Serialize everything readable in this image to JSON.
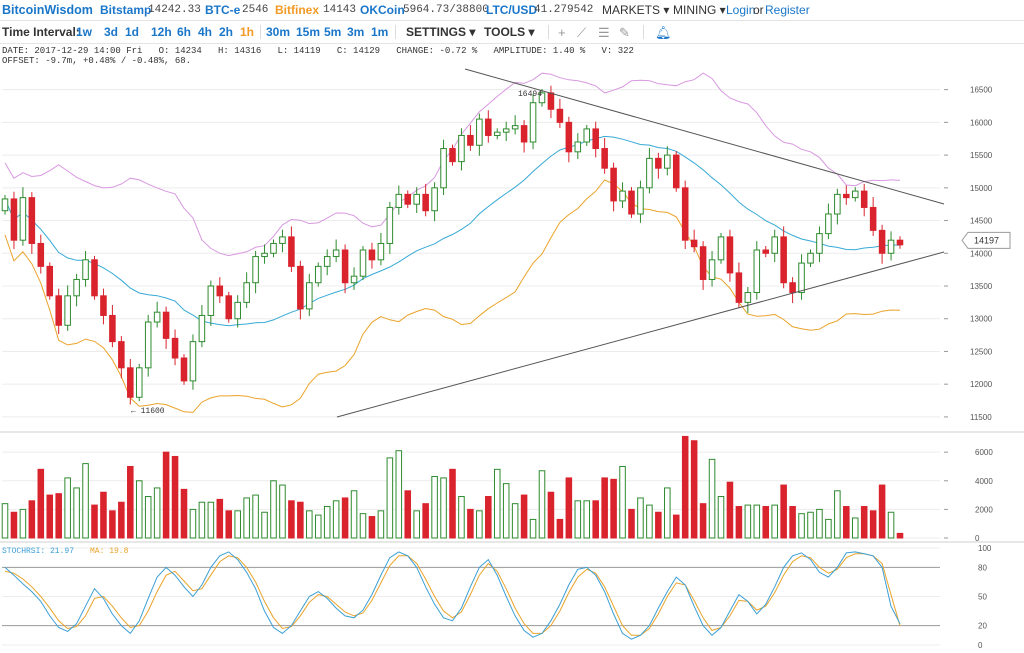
{
  "brand": "BitcoinWisdom",
  "markets": [
    {
      "name": "Bitstamp",
      "price": "14242.33",
      "color": "#1a76c9"
    },
    {
      "name": "BTC-e",
      "price": "2546",
      "color": "#1a76c9"
    },
    {
      "name": "Bitfinex",
      "price": "14143",
      "color": "#f39a25"
    },
    {
      "name": "OKCoin",
      "price": "5964.73/38800",
      "color": "#1a76c9"
    },
    {
      "name": "LTC/USD",
      "price": "41.279542",
      "color": "#1a76c9"
    }
  ],
  "nav": {
    "markets": "MARKETS ▾",
    "mining": "MINING ▾",
    "login": "Login",
    "or": "or",
    "register": "Register"
  },
  "toolbar": {
    "label": "Time Interval:",
    "intervals": [
      "1w",
      "3d",
      "1d",
      "12h",
      "6h",
      "4h",
      "2h",
      "1h",
      "30m",
      "15m",
      "5m",
      "3m",
      "1m"
    ],
    "active": "1h",
    "settings": "SETTINGS ▾",
    "tools": "TOOLS ▾",
    "tool_icons": [
      "crosshair-icon",
      "line-tool-icon",
      "fib-tool-icon",
      "brush-tool-icon",
      "alert-bell-icon"
    ]
  },
  "info": {
    "line1": "DATE: 2017-12-29 14:00 Fri   O: 14234   H: 14316   L: 14119   C: 14129   CHANGE: -0.72 %   AMPLITUDE: 1.40 %   V: 322",
    "line2": "OFFSET: -9.7m, +0.48% / -0.48%, 68."
  },
  "colors": {
    "up": "#2e8b2e",
    "down": "#d9232d",
    "mid": "#37a9d6",
    "upper": "#d899e0",
    "lower": "#eaa32a",
    "grid": "#ececec",
    "trend": "#555555"
  },
  "chart_data": {
    "type": "candlestick",
    "price_axis": {
      "ticks": [
        16500,
        16000,
        15500,
        15000,
        14500,
        14000,
        13500,
        13000,
        12500,
        12000,
        11500
      ],
      "range": [
        11300,
        16800
      ]
    },
    "current_price": "14197",
    "annotations": [
      {
        "text": "16494",
        "value": 16494
      },
      {
        "text": "← 11600",
        "value": 11600
      }
    ],
    "closes": [
      14830,
      14200,
      14850,
      14150,
      13800,
      13350,
      12900,
      13350,
      13600,
      13900,
      13350,
      13050,
      12650,
      12250,
      11800,
      12250,
      12950,
      13100,
      12700,
      12400,
      12050,
      12650,
      13050,
      13500,
      13350,
      13000,
      13250,
      13550,
      13950,
      14000,
      14150,
      14250,
      13800,
      13150,
      13550,
      13800,
      13950,
      14050,
      13550,
      13650,
      14050,
      13900,
      14150,
      14700,
      14900,
      14750,
      14900,
      14650,
      15000,
      15600,
      15400,
      15800,
      15650,
      16050,
      15800,
      15850,
      15900,
      15950,
      15700,
      16300,
      16450,
      16200,
      16000,
      15550,
      15700,
      15900,
      15600,
      15300,
      14800,
      14950,
      14600,
      15000,
      15450,
      15300,
      15500,
      15000,
      14200,
      14100,
      13600,
      13900,
      14250,
      13700,
      13250,
      13400,
      14050,
      14000,
      14250,
      13550,
      13400,
      13850,
      14000,
      14300,
      14600,
      14900,
      14850,
      14950,
      14700,
      14350,
      14000,
      14200,
      14129
    ],
    "volume_axis": {
      "ticks": [
        6000,
        4000,
        2000,
        0
      ],
      "range": [
        0,
        7200
      ]
    },
    "volumes": [
      2400,
      1800,
      2000,
      2600,
      4800,
      3000,
      3100,
      4200,
      3500,
      5200,
      2300,
      3200,
      1900,
      2500,
      5000,
      4000,
      2900,
      3500,
      6000,
      5700,
      3400,
      2000,
      2500,
      2500,
      2700,
      1900,
      1900,
      2800,
      3000,
      1800,
      4000,
      3700,
      2600,
      2500,
      1900,
      1600,
      2200,
      2600,
      2800,
      3300,
      1700,
      1500,
      1900,
      5600,
      6100,
      3300,
      1900,
      2400,
      4300,
      4200,
      4800,
      2900,
      2000,
      1900,
      2900,
      4800,
      3800,
      2400,
      3000,
      1300,
      4700,
      3200,
      1300,
      4200,
      2600,
      2600,
      2600,
      4200,
      4100,
      5000,
      2000,
      2800,
      2300,
      1800,
      3500,
      1600,
      7100,
      6800,
      2400,
      5500,
      2900,
      3900,
      2200,
      2300,
      2300,
      2200,
      2300,
      3700,
      2200,
      1700,
      1800,
      2000,
      1300,
      3300,
      2200,
      1400,
      2200,
      1900,
      3700,
      1800,
      322
    ],
    "indicator": {
      "label": "STOCHRSI: 21.97",
      "ma_label": "MA: 19.8",
      "ticks": [
        100,
        80,
        50,
        20,
        0
      ],
      "range": [
        0,
        100
      ]
    },
    "stoch": [
      80,
      72,
      63,
      55,
      45,
      30,
      18,
      14,
      22,
      40,
      58,
      48,
      32,
      20,
      12,
      25,
      48,
      70,
      80,
      72,
      60,
      50,
      62,
      80,
      92,
      96,
      88,
      75,
      58,
      35,
      18,
      12,
      20,
      35,
      50,
      55,
      48,
      38,
      30,
      28,
      36,
      52,
      72,
      90,
      96,
      92,
      80,
      60,
      42,
      28,
      25,
      38,
      60,
      80,
      88,
      72,
      50,
      30,
      15,
      8,
      12,
      25,
      42,
      62,
      78,
      80,
      72,
      55,
      32,
      12,
      6,
      10,
      20,
      38,
      55,
      70,
      62,
      40,
      20,
      10,
      18,
      35,
      52,
      45,
      32,
      42,
      60,
      80,
      92,
      95,
      88,
      75,
      70,
      80,
      95,
      96,
      94,
      92,
      80,
      40,
      21.97
    ],
    "stoch_ma": [
      76,
      74,
      68,
      60,
      50,
      38,
      25,
      17,
      19,
      30,
      48,
      50,
      40,
      28,
      18,
      20,
      35,
      55,
      72,
      76,
      66,
      56,
      58,
      72,
      86,
      92,
      90,
      80,
      65,
      45,
      28,
      17,
      19,
      30,
      44,
      52,
      50,
      42,
      34,
      30,
      33,
      46,
      64,
      82,
      92,
      92,
      84,
      68,
      50,
      35,
      28,
      34,
      52,
      72,
      84,
      76,
      58,
      38,
      22,
      12,
      12,
      20,
      35,
      54,
      70,
      78,
      74,
      60,
      40,
      20,
      10,
      10,
      17,
      32,
      50,
      64,
      62,
      46,
      28,
      15,
      18,
      30,
      46,
      45,
      36,
      40,
      54,
      72,
      86,
      92,
      90,
      80,
      74,
      78,
      90,
      94,
      94,
      92,
      84,
      52,
      19.8
    ]
  }
}
